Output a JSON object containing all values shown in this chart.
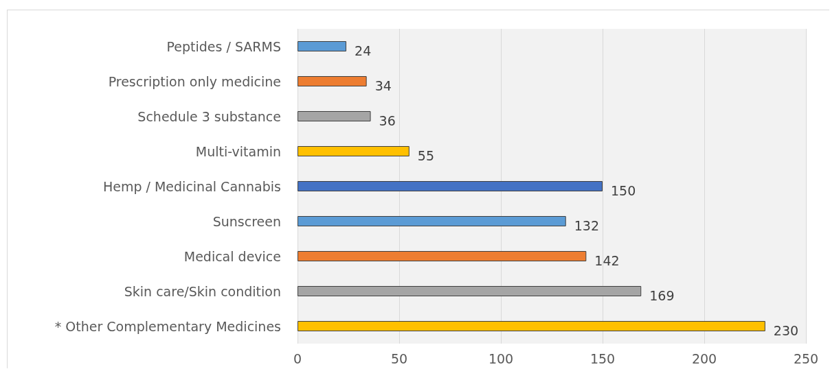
{
  "chart_data": {
    "type": "bar",
    "orientation": "horizontal",
    "categories": [
      "Peptides / SARMS",
      "Prescription only medicine",
      "Schedule 3 substance",
      "Multi-vitamin",
      "Hemp / Medicinal Cannabis",
      "Sunscreen",
      "Medical device",
      "Skin care/Skin condition",
      "* Other Complementary Medicines"
    ],
    "values": [
      24,
      34,
      36,
      55,
      150,
      132,
      142,
      169,
      230
    ],
    "colors": [
      "#5b9bd5",
      "#ed7d31",
      "#a5a5a5",
      "#ffc000",
      "#4472c4",
      "#5b9bd5",
      "#ed7d31",
      "#a5a5a5",
      "#ffc000"
    ],
    "xlim": [
      0,
      250
    ],
    "xticks": [
      0,
      50,
      100,
      150,
      200,
      250
    ],
    "grid": "x",
    "data_labels": true
  }
}
